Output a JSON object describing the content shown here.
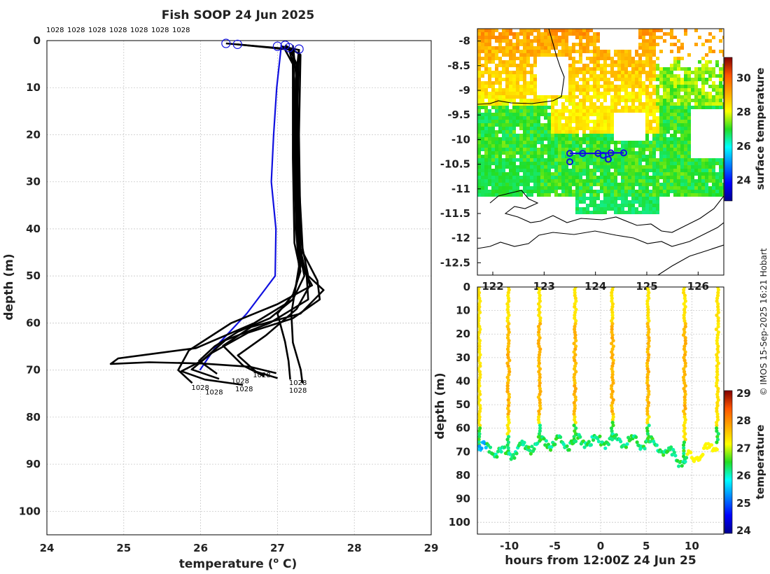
{
  "chart_data": [
    {
      "type": "line",
      "id": "profiles",
      "title": "Fish SOOP 24 Jun 2025",
      "xlabel": "temperature (",
      "xlabel_sup": "o",
      "xlabel_end": " C)",
      "ylabel": "depth (m)",
      "xlim": [
        24,
        29
      ],
      "ylim": [
        0,
        105
      ],
      "xticks": [
        "24",
        "25",
        "26",
        "27",
        "28",
        "29"
      ],
      "yticks": [
        "0",
        "10",
        "20",
        "30",
        "40",
        "50",
        "60",
        "70",
        "80",
        "90",
        "100"
      ],
      "grid": true,
      "top_labels": [
        "1028",
        "1028",
        "1028",
        "1028",
        "1028",
        "1028",
        "1028"
      ],
      "bottom_labels": [
        {
          "text": "1028",
          "t": 25.88,
          "d": 74.2
        },
        {
          "text": "1028",
          "t": 26.06,
          "d": 75.2
        },
        {
          "text": "1028",
          "t": 26.4,
          "d": 72.8
        },
        {
          "text": "1028",
          "t": 26.45,
          "d": 74.5
        },
        {
          "text": "1028",
          "t": 26.68,
          "d": 71.5
        },
        {
          "text": "1028",
          "t": 27.15,
          "d": 73.2
        },
        {
          "text": "1028",
          "t": 27.15,
          "d": 74.8
        }
      ],
      "series": [
        {
          "name": "mean",
          "color": "#1010e0",
          "points": [
            [
              27.05,
              1
            ],
            [
              26.99,
              10
            ],
            [
              26.95,
              20
            ],
            [
              26.92,
              30
            ],
            [
              26.98,
              40
            ],
            [
              26.97,
              50
            ],
            [
              26.6,
              58
            ],
            [
              26.2,
              65
            ],
            [
              25.99,
              70
            ]
          ]
        },
        {
          "name": "profile-1",
          "color": "#000000",
          "points": [
            [
              26.33,
              0.6
            ],
            [
              27.15,
              1.8
            ],
            [
              27.2,
              5
            ],
            [
              27.22,
              15
            ],
            [
              27.22,
              30
            ],
            [
              27.25,
              40
            ],
            [
              27.3,
              48
            ],
            [
              27.2,
              55
            ],
            [
              26.7,
              60
            ],
            [
              26.0,
              65
            ],
            [
              25.3,
              67
            ],
            [
              24.9,
              67.5
            ],
            [
              24.85,
              68.5
            ],
            [
              25.3,
              68.3
            ],
            [
              26.0,
              68.5
            ],
            [
              26.6,
              69.5
            ],
            [
              27.0,
              70.5
            ]
          ]
        },
        {
          "name": "profile-2",
          "color": "#000000",
          "points": [
            [
              26.48,
              0.8
            ],
            [
              27.2,
              2
            ],
            [
              27.22,
              10
            ],
            [
              27.24,
              25
            ],
            [
              27.26,
              42
            ],
            [
              27.38,
              50
            ],
            [
              27.4,
              55
            ],
            [
              26.9,
              60
            ],
            [
              26.3,
              64
            ],
            [
              26.0,
              68
            ],
            [
              25.7,
              70
            ],
            [
              26.1,
              72
            ],
            [
              26.5,
              73
            ]
          ]
        },
        {
          "name": "profile-3",
          "color": "#000000",
          "points": [
            [
              27.05,
              1.2
            ],
            [
              27.28,
              2
            ],
            [
              27.26,
              15
            ],
            [
              27.28,
              30
            ],
            [
              27.33,
              45
            ],
            [
              27.52,
              51
            ],
            [
              27.55,
              55
            ],
            [
              27.2,
              59
            ],
            [
              26.6,
              62
            ],
            [
              26.1,
              66
            ],
            [
              25.9,
              70
            ],
            [
              26.2,
              72
            ]
          ]
        },
        {
          "name": "profile-4",
          "color": "#000000",
          "points": [
            [
              27.1,
              1
            ],
            [
              27.3,
              3
            ],
            [
              27.28,
              20
            ],
            [
              27.3,
              42
            ],
            [
              27.4,
              50
            ],
            [
              27.6,
              53
            ],
            [
              27.3,
              58
            ],
            [
              26.7,
              61
            ],
            [
              26.3,
              65
            ],
            [
              26.5,
              69
            ],
            [
              26.8,
              71
            ]
          ]
        },
        {
          "name": "profile-5",
          "color": "#000000",
          "points": [
            [
              27.15,
              1.5
            ],
            [
              27.25,
              5
            ],
            [
              27.27,
              20
            ],
            [
              27.28,
              42
            ],
            [
              27.35,
              49
            ],
            [
              27.45,
              52
            ],
            [
              27.0,
              56
            ],
            [
              26.4,
              60
            ],
            [
              25.9,
              66
            ],
            [
              25.7,
              70
            ],
            [
              25.9,
              73
            ]
          ]
        },
        {
          "name": "profile-6",
          "color": "#000000",
          "points": [
            [
              27.28,
              1.8
            ],
            [
              27.24,
              8
            ],
            [
              27.25,
              30
            ],
            [
              27.28,
              44
            ],
            [
              27.42,
              52
            ],
            [
              27.25,
              57
            ],
            [
              26.8,
              63
            ],
            [
              26.5,
              67
            ],
            [
              26.7,
              70
            ],
            [
              27.0,
              72
            ]
          ]
        },
        {
          "name": "profile-7",
          "color": "#000000",
          "points": [
            [
              27.2,
              1
            ],
            [
              27.26,
              10
            ],
            [
              27.27,
              35
            ],
            [
              27.3,
              46
            ],
            [
              27.35,
              50
            ],
            [
              27.2,
              55
            ],
            [
              26.9,
              59
            ],
            [
              26.5,
              62
            ],
            [
              26.2,
              65
            ],
            [
              26.0,
              68
            ],
            [
              26.2,
              71
            ]
          ]
        },
        {
          "name": "profile-8",
          "color": "#000000",
          "points": [
            [
              27.1,
              2
            ],
            [
              27.2,
              5
            ],
            [
              27.2,
              25
            ],
            [
              27.22,
              43
            ],
            [
              27.3,
              49
            ],
            [
              27.2,
              54
            ],
            [
              27.0,
              58
            ],
            [
              27.05,
              64
            ],
            [
              27.1,
              68
            ],
            [
              27.15,
              72
            ]
          ]
        },
        {
          "name": "profile-9",
          "color": "#000000",
          "points": [
            [
              27.2,
              2
            ],
            [
              27.22,
              20
            ],
            [
              27.24,
              40
            ],
            [
              27.28,
              48
            ],
            [
              27.18,
              58
            ],
            [
              27.2,
              64
            ],
            [
              27.25,
              70
            ],
            [
              27.3,
              73
            ]
          ]
        }
      ],
      "markers": [
        [
          26.33,
          0.6
        ],
        [
          26.48,
          0.8
        ],
        [
          27.0,
          1.2
        ],
        [
          27.1,
          1.0
        ],
        [
          27.15,
          1.5
        ],
        [
          27.28,
          1.8
        ]
      ]
    },
    {
      "type": "heatmap",
      "id": "map",
      "xlim": [
        121.7,
        126.5
      ],
      "ylim": [
        -12.75,
        -7.75
      ],
      "xticks": [
        "122",
        "123",
        "124",
        "125",
        "126"
      ],
      "yticks": [
        "-8",
        "-8.5",
        "-9",
        "-9.5",
        "-10",
        "-10.5",
        "-11",
        "-11.5",
        "-12",
        "-12.5"
      ],
      "colorbar_label": "surface temperature",
      "colorbar_ticks": [
        "24",
        "26",
        "28",
        "30"
      ],
      "clim": [
        22.8,
        31.2
      ],
      "track": [
        [
          123.5,
          -10.28
        ],
        [
          123.75,
          -10.28
        ],
        [
          124.05,
          -10.28
        ],
        [
          124.3,
          -10.27
        ],
        [
          124.55,
          -10.27
        ],
        [
          124.15,
          -10.32
        ],
        [
          123.5,
          -10.45
        ],
        [
          124.25,
          -10.4
        ]
      ]
    },
    {
      "type": "scatter",
      "id": "section",
      "xlabel": "hours from 12:00Z 24 Jun 25",
      "ylabel": "depth (m)",
      "xlim": [
        -13.5,
        13.5
      ],
      "ylim": [
        0,
        105
      ],
      "xticks": [
        "-10",
        "-5",
        "0",
        "5",
        "10"
      ],
      "yticks": [
        "0",
        "10",
        "20",
        "30",
        "40",
        "50",
        "60",
        "70",
        "80",
        "90",
        "100"
      ],
      "colorbar_label": "temperature",
      "colorbar_ticks": [
        "24",
        "25",
        "26",
        "27",
        "28",
        "29"
      ],
      "clim": [
        23.9,
        29.1
      ],
      "profile_hours": [
        -13.3,
        -10.1,
        -6.7,
        -2.8,
        1.3,
        5.2,
        9.2,
        12.8
      ],
      "profile_bottom_depth": [
        68,
        71,
        66,
        66,
        65,
        66,
        74,
        67
      ]
    }
  ],
  "credit": "© IMOS 15-Sep-2025 16:21 Hobart"
}
